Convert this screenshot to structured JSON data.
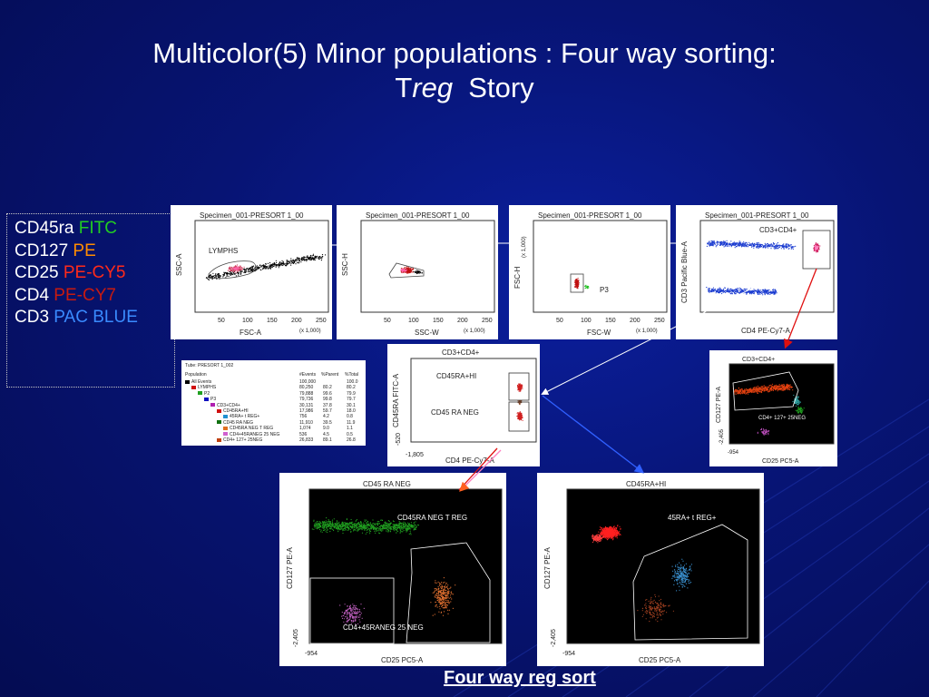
{
  "slide": {
    "title_line1": "Multicolor(5)  Minor populations : Four way sorting:",
    "title_line2_prefix": "T",
    "title_line2_italic": "reg",
    "title_line2_suffix": "  Story",
    "caption": "Four way reg sort"
  },
  "legend": [
    {
      "marker": "CD45ra",
      "dye": "FITC",
      "dye_color": "#22cc22"
    },
    {
      "marker": "CD127",
      "dye": "PE",
      "dye_color": "#ff8c00"
    },
    {
      "marker": "CD25",
      "dye": "PE-CY5",
      "dye_color": "#ff2a1a"
    },
    {
      "marker": "CD4",
      "dye": "PE-CY7",
      "dye_color": "#c81a10"
    },
    {
      "marker": "CD3",
      "dye": "PAC BLUE",
      "dye_color": "#3a8bff"
    }
  ],
  "plots": {
    "p1": {
      "header": "Specimen_001-PRESORT 1_00",
      "x_label": "FSC-A",
      "y_label": "SSC-A",
      "x_ticks": [
        "50",
        "100",
        "150",
        "200",
        "250"
      ],
      "scale": "(x 1,000)",
      "gate": "LYMPHS"
    },
    "p2": {
      "header": "Specimen_001-PRESORT 1_00",
      "x_label": "SSC-W",
      "y_label": "SSC-H",
      "x_ticks": [
        "50",
        "100",
        "150",
        "200",
        "250"
      ],
      "scale": "(x 1,000)"
    },
    "p3": {
      "header": "Specimen_001-PRESORT 1_00",
      "x_label": "FSC-W",
      "y_label": "FSC-H",
      "y_scale": "(x 1,000)",
      "x_ticks": [
        "50",
        "100",
        "150",
        "200",
        "250"
      ],
      "scale": "(x 1,000)",
      "gate": "P3"
    },
    "p4": {
      "header": "Specimen_001-PRESORT 1_00",
      "x_label": "CD4 PE-Cy7-A",
      "y_label": "CD3 Pacific Blue-A",
      "gate": "CD3+CD4+"
    },
    "p5": {
      "header": "CD3+CD4+",
      "x_label": "CD4 PE-Cy7-A",
      "y_label": "CD45RA FITC-A",
      "gate_hi": "CD45RA+HI",
      "gate_neg": "CD45 RA NEG",
      "x_first": "-1,805",
      "y_first": "-520"
    },
    "p6": {
      "header": "CD3+CD4+",
      "x_label": "CD25 PC5-A",
      "y_label": "CD127 PE-A",
      "gate": "CD4+ 127+ 25NEG",
      "x_first": "-954",
      "y_first": "-2,405"
    },
    "p7": {
      "header": "CD45 RA NEG",
      "x_label": "CD25 PC5-A",
      "y_label": "CD127 PE-A",
      "gate_top": "CD45RA NEG T REG",
      "gate_bottom": "CD4+45RANEG 25 NEG",
      "x_first": "-954",
      "y_first": "-2,405"
    },
    "p8": {
      "header": "CD45RA+HI",
      "x_label": "CD25 PC5-A",
      "y_label": "CD127 PE-A",
      "gate": "45RA+ t REG+",
      "x_first": "-954",
      "y_first": "-2,405"
    }
  },
  "pop_table": {
    "tube": "Tube:  PRESORT 1_002",
    "headers": [
      "Population",
      "#Events",
      "%Parent",
      "%Total"
    ],
    "rows": [
      {
        "name": "All Events",
        "events": "100,000",
        "parent": "",
        "total": "100.0",
        "color": "#000000",
        "indent": 0
      },
      {
        "name": "LYMPHS",
        "events": "80,250",
        "parent": "80.2",
        "total": "80.2",
        "color": "#d01010",
        "indent": 1
      },
      {
        "name": "P2",
        "events": "79,888",
        "parent": "99.6",
        "total": "79.9",
        "color": "#20a020",
        "indent": 2
      },
      {
        "name": "P3",
        "events": "79,736",
        "parent": "99.8",
        "total": "79.7",
        "color": "#1010c0",
        "indent": 3
      },
      {
        "name": "CD3+CD4+",
        "events": "30,131",
        "parent": "37.8",
        "total": "30.1",
        "color": "#b020b0",
        "indent": 4
      },
      {
        "name": "CD45RA+HI",
        "events": "17,986",
        "parent": "59.7",
        "total": "18.0",
        "color": "#d01010",
        "indent": 5
      },
      {
        "name": "45RA+ t REG+",
        "events": "756",
        "parent": "4.2",
        "total": "0.8",
        "color": "#2090d0",
        "indent": 6
      },
      {
        "name": "CD45 RA NEG",
        "events": "11,910",
        "parent": "39.5",
        "total": "11.9",
        "color": "#107010",
        "indent": 5
      },
      {
        "name": "CD45RA NEG T REG",
        "events": "1,074",
        "parent": "9.0",
        "total": "1.1",
        "color": "#e07020",
        "indent": 6
      },
      {
        "name": "CD4+45RANEG 25 NEG",
        "events": "536",
        "parent": "4.5",
        "total": "0.5",
        "color": "#d060d0",
        "indent": 6
      },
      {
        "name": "CD4+ 127+ 25NEG",
        "events": "26,833",
        "parent": "89.1",
        "total": "26.8",
        "color": "#c04010",
        "indent": 5
      }
    ]
  }
}
